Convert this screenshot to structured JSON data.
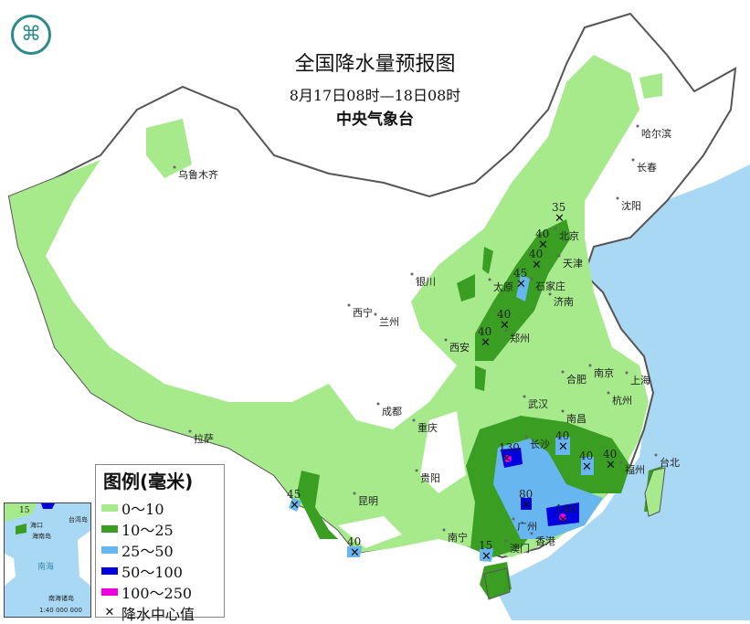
{
  "header": {
    "title": "全国降水量预报图",
    "period": "8月17日08时—18日08时",
    "issuer": "中央气象台",
    "logo": "中央气象台"
  },
  "legend": {
    "title": "图例(毫米)",
    "items": [
      {
        "label": "0～10",
        "color": "#a6ea8c"
      },
      {
        "label": "10～25",
        "color": "#3a9e23"
      },
      {
        "label": "25～50",
        "color": "#68b6f0"
      },
      {
        "label": "50～100",
        "color": "#0000e0"
      },
      {
        "label": "100～250",
        "color": "#f000e0"
      }
    ],
    "center_label": "降水中心值"
  },
  "cities": [
    "乌鲁木齐",
    "哈尔滨",
    "长春",
    "沈阳",
    "北京",
    "天津",
    "石家庄",
    "太原",
    "济南",
    "银川",
    "西宁",
    "兰州",
    "西安",
    "郑州",
    "合肥",
    "南京",
    "上海",
    "杭州",
    "武汉",
    "南昌",
    "长沙",
    "成都",
    "重庆",
    "贵阳",
    "昆明",
    "拉萨",
    "南宁",
    "广州",
    "福州",
    "台北",
    "香港",
    "澳门"
  ],
  "rain_centers": [
    "35",
    "40",
    "40",
    "45",
    "40",
    "40",
    "130",
    "40",
    "40",
    "40",
    "80",
    "140",
    "15",
    "45",
    "40"
  ],
  "inset": {
    "labels": [
      "海口",
      "海南岛",
      "台湾岛",
      "南海",
      "南海诸岛"
    ],
    "scale": "1:40 000 000",
    "value": "15"
  },
  "colors": {
    "sea": "#a8d8f4",
    "land": "#ffffff",
    "light_rain": "#a6ea8c",
    "moderate_rain": "#3a9e23",
    "heavy_rain": "#68b6f0",
    "rainstorm": "#0000e0",
    "heavy_rainstorm": "#f000e0"
  }
}
